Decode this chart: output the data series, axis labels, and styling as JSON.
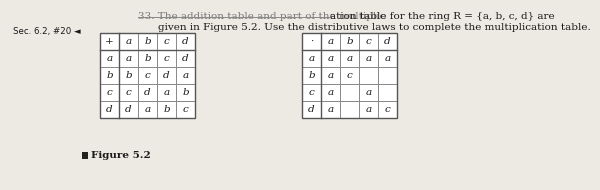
{
  "sec_label": "Sec. 6.2, #20 ◄",
  "title_strike": "33. The addition table and part of the multiplic",
  "title_normal": "ation table for the ring R = {a, b, c, d} are",
  "line2": "given in Figure 5.2. Use the distributive laws to complete the multiplication table.",
  "fig_label": "Figure 5.2",
  "add_header": [
    "+",
    "a",
    "b",
    "c",
    "d"
  ],
  "add_rows": [
    [
      "a",
      "a",
      "b",
      "c",
      "d"
    ],
    [
      "b",
      "b",
      "c",
      "d",
      "a"
    ],
    [
      "c",
      "c",
      "d",
      "a",
      "b"
    ],
    [
      "d",
      "d",
      "a",
      "b",
      "c"
    ]
  ],
  "mul_header": [
    "·",
    "a",
    "b",
    "c",
    "d"
  ],
  "mul_rows": [
    [
      "a",
      "a",
      "a",
      "a",
      "a"
    ],
    [
      "b",
      "a",
      "c",
      "",
      ""
    ],
    [
      "c",
      "a",
      "",
      "a",
      ""
    ],
    [
      "d",
      "a",
      "",
      "a",
      "c"
    ]
  ],
  "bg_color": "#ede9e3",
  "table_bg": "#ffffff",
  "text_color": "#1a1a1a"
}
